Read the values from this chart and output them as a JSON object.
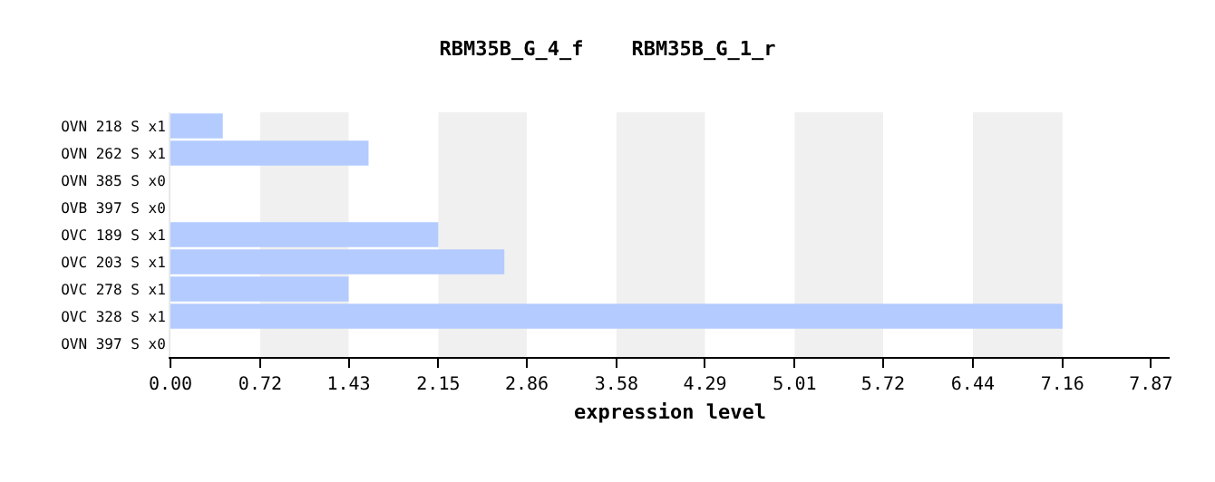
{
  "chart_data": {
    "type": "bar",
    "orientation": "horizontal",
    "title": "RBM35B_G_4_f    RBM35B_G_1_r",
    "xlabel": "expression level",
    "categories": [
      "OVN 218 S x1",
      "OVN 262 S x1",
      "OVN 385 S x0",
      "OVB 397 S x0",
      "OVC 189 S x1",
      "OVC 203 S x1",
      "OVC 278 S x1",
      "OVC 328 S x1",
      "OVN 397 S x0"
    ],
    "values": [
      0.42,
      1.59,
      0,
      0,
      2.15,
      2.68,
      1.43,
      7.16,
      0
    ],
    "color": "#b3cbff",
    "xlim": [
      0,
      8.02
    ],
    "xticks": [
      {
        "value": 0,
        "label": "0.00"
      },
      0.72,
      1.43,
      2.15,
      2.86,
      3.58,
      4.29,
      5.01,
      5.72,
      6.44,
      7.16,
      7.87
    ],
    "bands": [
      {
        "axis": "x",
        "from": 0.72,
        "to": 1.43,
        "color": "#f0f0f0"
      },
      {
        "axis": "x",
        "from": 2.15,
        "to": 2.86,
        "color": "#f0f0f0"
      },
      {
        "axis": "x",
        "from": 3.58,
        "to": 4.29,
        "color": "#f0f0f0"
      },
      {
        "axis": "x",
        "from": 5.01,
        "to": 5.72,
        "color": "#f0f0f0"
      },
      {
        "axis": "x",
        "from": 6.44,
        "to": 7.16,
        "color": "#f0f0f0"
      }
    ],
    "grid": false,
    "legend": false
  }
}
